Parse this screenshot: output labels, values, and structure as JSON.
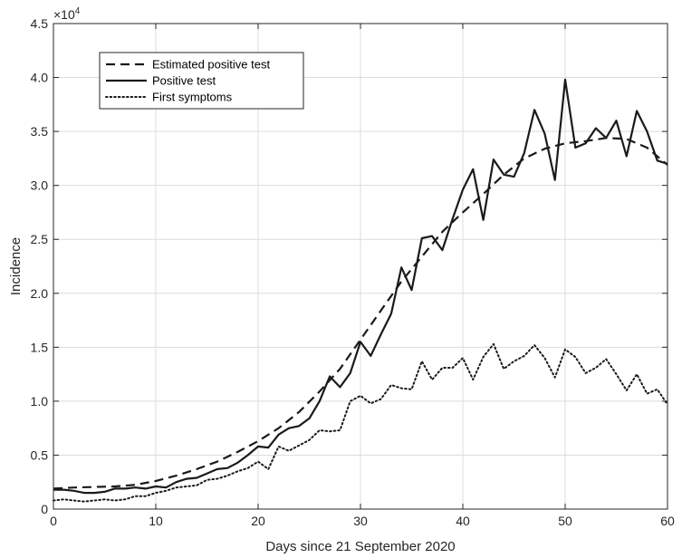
{
  "chart_data": {
    "type": "line",
    "xlabel": "Days since 21 September 2020",
    "ylabel": "Incidence",
    "exponent_label": "×10",
    "exponent_power": "4",
    "xlim": [
      0,
      60
    ],
    "ylim": [
      0,
      45000
    ],
    "xticks": [
      0,
      10,
      20,
      30,
      40,
      50,
      60
    ],
    "xtick_labels": [
      "0",
      "10",
      "20",
      "30",
      "40",
      "50",
      "60"
    ],
    "yticks": [
      0,
      5000,
      10000,
      15000,
      20000,
      25000,
      30000,
      35000,
      40000,
      45000
    ],
    "ytick_labels": [
      "0",
      "0.5",
      "1.0",
      "1.5",
      "2.0",
      "2.5",
      "3.0",
      "3.5",
      "4.0",
      "4.5"
    ],
    "grid": true,
    "legend_position": "top-left",
    "colors": {
      "line": "#1a1a1a",
      "grid": "#dcdcdc",
      "axis": "#262626"
    },
    "series": [
      {
        "name": "Estimated positive test",
        "style": "dashed",
        "x": [
          0,
          2,
          4,
          6,
          8,
          10,
          12,
          14,
          16,
          18,
          20,
          22,
          24,
          26,
          28,
          30,
          32,
          34,
          36,
          38,
          40,
          42,
          44,
          46,
          48,
          50,
          52,
          54,
          56,
          58,
          60
        ],
        "values": [
          1900,
          2000,
          2050,
          2100,
          2250,
          2600,
          3100,
          3700,
          4400,
          5300,
          6300,
          7500,
          9000,
          10900,
          13000,
          15700,
          18400,
          21100,
          23400,
          25700,
          27500,
          29200,
          31000,
          32500,
          33400,
          33900,
          34100,
          34400,
          34300,
          33500,
          31900
        ]
      },
      {
        "name": "Positive test",
        "style": "solid",
        "x": [
          0,
          1,
          2,
          3,
          4,
          5,
          6,
          7,
          8,
          9,
          10,
          11,
          12,
          13,
          14,
          15,
          16,
          17,
          18,
          19,
          20,
          21,
          22,
          23,
          24,
          25,
          26,
          27,
          28,
          29,
          30,
          31,
          32,
          33,
          34,
          35,
          36,
          37,
          38,
          39,
          40,
          41,
          42,
          43,
          44,
          45,
          46,
          47,
          48,
          49,
          50,
          51,
          52,
          53,
          54,
          55,
          56,
          57,
          58,
          59,
          60
        ],
        "values": [
          1800,
          1800,
          1700,
          1500,
          1500,
          1600,
          1900,
          1900,
          2000,
          1900,
          2100,
          2000,
          2500,
          2800,
          2900,
          3300,
          3700,
          3800,
          4300,
          5000,
          5800,
          5700,
          6900,
          7500,
          7700,
          8400,
          10000,
          12300,
          11300,
          12600,
          15500,
          14200,
          16200,
          18100,
          22400,
          20300,
          25100,
          25300,
          24000,
          26900,
          29600,
          31500,
          26800,
          32400,
          31000,
          30800,
          33000,
          37000,
          34800,
          30500,
          39800,
          33500,
          33900,
          35300,
          34400,
          36000,
          32700,
          36900,
          35000,
          32300,
          32000
        ]
      },
      {
        "name": "First symptoms",
        "style": "dotted",
        "x": [
          0,
          1,
          2,
          3,
          4,
          5,
          6,
          7,
          8,
          9,
          10,
          11,
          12,
          13,
          14,
          15,
          16,
          17,
          18,
          19,
          20,
          21,
          22,
          23,
          24,
          25,
          26,
          27,
          28,
          29,
          30,
          31,
          32,
          33,
          34,
          35,
          36,
          37,
          38,
          39,
          40,
          41,
          42,
          43,
          44,
          45,
          46,
          47,
          48,
          49,
          50,
          51,
          52,
          53,
          54,
          55,
          56,
          57,
          58,
          59,
          60
        ],
        "values": [
          800,
          900,
          800,
          700,
          800,
          900,
          800,
          900,
          1200,
          1200,
          1500,
          1700,
          2000,
          2100,
          2200,
          2700,
          2800,
          3100,
          3500,
          3800,
          4400,
          3700,
          5800,
          5400,
          5900,
          6400,
          7300,
          7200,
          7300,
          10000,
          10500,
          9800,
          10200,
          11500,
          11200,
          11100,
          13700,
          12000,
          13100,
          13100,
          14000,
          12000,
          14100,
          15300,
          13000,
          13700,
          14200,
          15200,
          14000,
          12200,
          14800,
          14100,
          12600,
          13100,
          13900,
          12500,
          11000,
          12500,
          10700,
          11100,
          9700
        ]
      }
    ]
  }
}
